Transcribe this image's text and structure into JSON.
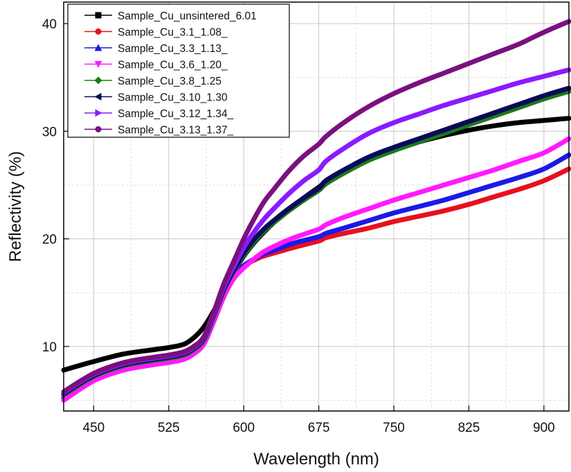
{
  "chart_data": {
    "type": "line",
    "title": "",
    "xlabel": "Wavelength (nm)",
    "ylabel": "Reflectivity (%)",
    "xlim": [
      420,
      925
    ],
    "ylim": [
      4,
      42
    ],
    "xticks": [
      450,
      525,
      600,
      675,
      750,
      825,
      900
    ],
    "yticks": [
      10,
      20,
      30,
      40
    ],
    "grid": true,
    "legend_position": "top-left",
    "series": [
      {
        "name": "Sample_Cu_unsintered_6.01",
        "color": "#000000",
        "marker": "square",
        "x": [
          420,
          450,
          480,
          510,
          525,
          540,
          550,
          560,
          570,
          580,
          590,
          600,
          610,
          620,
          630,
          645,
          660,
          675,
          682,
          700,
          725,
          750,
          775,
          800,
          825,
          850,
          875,
          900,
          925
        ],
        "y": [
          7.8,
          8.6,
          9.3,
          9.7,
          9.9,
          10.2,
          10.8,
          11.8,
          13.3,
          15.1,
          16.9,
          18.4,
          19.6,
          20.6,
          21.5,
          22.7,
          23.8,
          24.8,
          25.3,
          26.3,
          27.5,
          28.3,
          29.0,
          29.6,
          30.1,
          30.5,
          30.8,
          31.0,
          31.2
        ]
      },
      {
        "name": "Sample_Cu_3.1_1.08_",
        "color": "#e8101e",
        "marker": "circle",
        "x": [
          420,
          450,
          480,
          510,
          525,
          540,
          550,
          560,
          570,
          580,
          590,
          600,
          610,
          620,
          635,
          650,
          675,
          682,
          700,
          725,
          750,
          775,
          800,
          825,
          850,
          875,
          900,
          925
        ],
        "y": [
          5.2,
          7.0,
          8.0,
          8.5,
          8.6,
          8.9,
          9.4,
          10.3,
          12.5,
          14.8,
          16.5,
          17.5,
          18.0,
          18.4,
          18.8,
          19.2,
          19.8,
          20.1,
          20.5,
          21.0,
          21.6,
          22.1,
          22.6,
          23.2,
          23.9,
          24.6,
          25.4,
          26.5
        ]
      },
      {
        "name": "Sample_Cu_3.3_1.13_",
        "color": "#1a1ae6",
        "marker": "triangle-up",
        "x": [
          420,
          450,
          480,
          510,
          525,
          540,
          550,
          560,
          570,
          580,
          590,
          600,
          610,
          620,
          635,
          650,
          675,
          682,
          700,
          725,
          750,
          775,
          800,
          825,
          850,
          875,
          900,
          925
        ],
        "y": [
          5.2,
          7.0,
          8.0,
          8.5,
          8.6,
          8.9,
          9.4,
          10.3,
          12.5,
          14.8,
          16.5,
          17.5,
          18.1,
          18.6,
          19.1,
          19.6,
          20.2,
          20.5,
          21.0,
          21.7,
          22.4,
          23.0,
          23.6,
          24.3,
          25.0,
          25.7,
          26.5,
          27.8
        ]
      },
      {
        "name": "Sample_Cu_3.6_1.20_",
        "color": "#ff1aff",
        "marker": "triangle-down",
        "x": [
          420,
          450,
          480,
          510,
          525,
          540,
          550,
          560,
          570,
          580,
          590,
          600,
          610,
          620,
          635,
          650,
          675,
          682,
          700,
          725,
          750,
          775,
          800,
          825,
          850,
          875,
          900,
          925
        ],
        "y": [
          5.0,
          6.8,
          7.8,
          8.3,
          8.5,
          8.8,
          9.3,
          10.2,
          12.3,
          14.6,
          16.3,
          17.3,
          18.1,
          18.8,
          19.5,
          20.1,
          20.9,
          21.3,
          22.0,
          22.8,
          23.6,
          24.3,
          25.0,
          25.7,
          26.4,
          27.2,
          28.0,
          29.3
        ]
      },
      {
        "name": "Sample_Cu_3.8_1.25",
        "color": "#1a7a1a",
        "marker": "diamond",
        "x": [
          420,
          450,
          480,
          510,
          525,
          540,
          550,
          560,
          570,
          580,
          590,
          600,
          610,
          620,
          630,
          645,
          660,
          675,
          682,
          700,
          725,
          750,
          775,
          800,
          825,
          850,
          875,
          900,
          925
        ],
        "y": [
          5.5,
          7.2,
          8.2,
          8.7,
          8.9,
          9.2,
          9.7,
          10.6,
          12.8,
          15.2,
          17.0,
          18.5,
          19.7,
          20.7,
          21.5,
          22.6,
          23.6,
          24.5,
          25.1,
          26.1,
          27.3,
          28.2,
          29.0,
          29.8,
          30.6,
          31.4,
          32.2,
          33.0,
          33.7
        ]
      },
      {
        "name": "Sample_Cu_3.10_1.30",
        "color": "#0a0a5a",
        "marker": "triangle-left",
        "x": [
          420,
          450,
          480,
          510,
          525,
          540,
          550,
          560,
          570,
          580,
          590,
          600,
          610,
          620,
          630,
          645,
          660,
          675,
          682,
          700,
          725,
          750,
          775,
          800,
          825,
          850,
          875,
          900,
          925
        ],
        "y": [
          5.6,
          7.3,
          8.3,
          8.8,
          9.0,
          9.3,
          9.8,
          10.7,
          12.9,
          15.3,
          17.1,
          18.7,
          19.9,
          20.9,
          21.7,
          22.8,
          23.8,
          24.7,
          25.4,
          26.4,
          27.6,
          28.5,
          29.3,
          30.1,
          30.9,
          31.7,
          32.5,
          33.3,
          34.0
        ]
      },
      {
        "name": "Sample_Cu_3.12_1.34_",
        "color": "#8a1aff",
        "marker": "triangle-right",
        "x": [
          420,
          450,
          480,
          510,
          525,
          540,
          550,
          560,
          570,
          580,
          590,
          600,
          610,
          620,
          630,
          645,
          660,
          675,
          682,
          700,
          725,
          750,
          775,
          800,
          825,
          850,
          875,
          900,
          925
        ],
        "y": [
          5.7,
          7.4,
          8.4,
          8.9,
          9.1,
          9.4,
          9.9,
          10.8,
          13.0,
          15.5,
          17.4,
          19.2,
          20.6,
          21.8,
          22.8,
          24.2,
          25.4,
          26.4,
          27.2,
          28.4,
          29.8,
          30.8,
          31.6,
          32.4,
          33.1,
          33.8,
          34.5,
          35.1,
          35.7
        ]
      },
      {
        "name": "Sample_Cu_3.13_1.37_",
        "color": "#7a1080",
        "marker": "circle",
        "x": [
          420,
          450,
          480,
          510,
          525,
          540,
          550,
          560,
          570,
          580,
          590,
          600,
          610,
          620,
          630,
          645,
          660,
          675,
          682,
          700,
          725,
          750,
          775,
          800,
          825,
          850,
          875,
          900,
          925
        ],
        "y": [
          5.8,
          7.5,
          8.5,
          9.0,
          9.2,
          9.5,
          10.0,
          10.9,
          13.2,
          15.8,
          17.9,
          20.0,
          21.8,
          23.4,
          24.6,
          26.3,
          27.7,
          28.8,
          29.5,
          30.8,
          32.3,
          33.5,
          34.5,
          35.4,
          36.3,
          37.2,
          38.1,
          39.2,
          40.2
        ]
      }
    ]
  }
}
